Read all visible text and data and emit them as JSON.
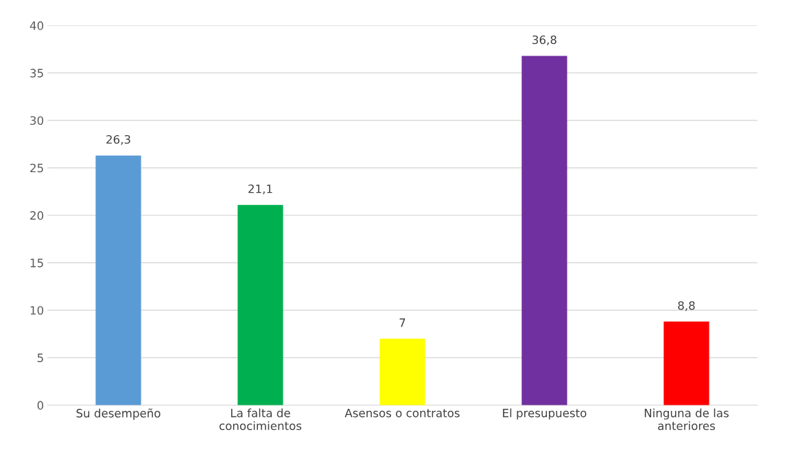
{
  "chart_data": {
    "type": "bar",
    "categories": [
      "Su desempeño",
      "La falta de conocimientos",
      "Asensos o contratos",
      "El presupuesto",
      "Ninguna de las anteriores"
    ],
    "values": [
      26.3,
      21.1,
      7,
      36.8,
      8.8
    ],
    "colors": [
      "#5b9bd5",
      "#00b050",
      "#ffff00",
      "#7030a0",
      "#ff0000"
    ],
    "value_labels": [
      "26,3",
      "21,1",
      "7",
      "36,8",
      "8,8"
    ],
    "ylim": [
      0,
      40
    ],
    "yticks": [
      0,
      5,
      10,
      15,
      20,
      25,
      30,
      35,
      40
    ],
    "grid": "y",
    "legend": false
  }
}
